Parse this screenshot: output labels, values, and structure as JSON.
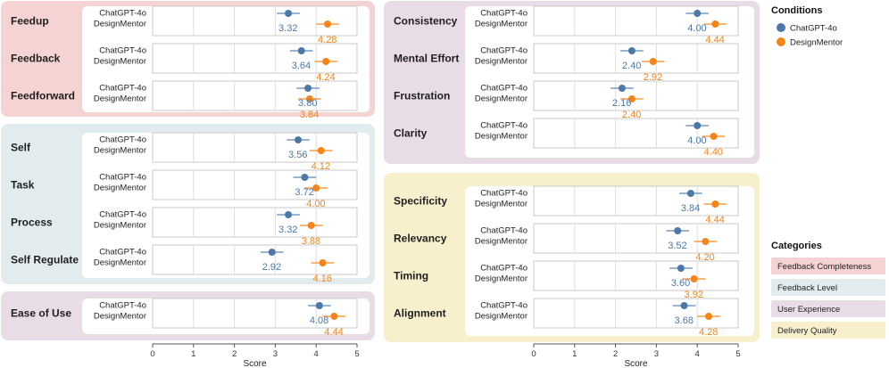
{
  "legend": {
    "conditions_title": "Conditions",
    "categories_title": "Categories"
  },
  "chart_data": {
    "type": "dot-whisker",
    "xlabel": "Score",
    "xlim": [
      0,
      5
    ],
    "ticks": [
      0,
      1,
      2,
      3,
      4,
      5
    ],
    "conditions": [
      {
        "name": "ChatGPT-4o",
        "color": "#4C78A8"
      },
      {
        "name": "DesignMentor",
        "color": "#F58518"
      }
    ],
    "categories": [
      {
        "name": "Feedback Completeness",
        "color": "#F5D3D2"
      },
      {
        "name": "Feedback Level",
        "color": "#E2ECEE"
      },
      {
        "name": "User Experience",
        "color": "#E8DCE6"
      },
      {
        "name": "Delivery Quality",
        "color": "#F8EFCD"
      }
    ],
    "groups": [
      {
        "category": "Feedback Completeness",
        "metrics": [
          {
            "name": "Feedup",
            "values": [
              3.32,
              4.28
            ]
          },
          {
            "name": "Feedback",
            "values": [
              3.64,
              4.24
            ]
          },
          {
            "name": "Feedforward",
            "values": [
              3.8,
              3.84
            ]
          }
        ]
      },
      {
        "category": "Feedback Level",
        "metrics": [
          {
            "name": "Self",
            "values": [
              3.56,
              4.12
            ]
          },
          {
            "name": "Task",
            "values": [
              3.72,
              4.0
            ]
          },
          {
            "name": "Process",
            "values": [
              3.32,
              3.88
            ]
          },
          {
            "name": "Self Regulate",
            "values": [
              2.92,
              4.16
            ]
          }
        ]
      },
      {
        "category": "User Experience",
        "metrics": [
          {
            "name": "Ease of Use",
            "values": [
              4.08,
              4.44
            ]
          }
        ]
      },
      {
        "category": "User Experience",
        "metrics": [
          {
            "name": "Consistency",
            "values": [
              4.0,
              4.44
            ]
          },
          {
            "name": "Mental Effort",
            "values": [
              2.4,
              2.92
            ]
          },
          {
            "name": "Frustration",
            "values": [
              2.16,
              2.4
            ]
          },
          {
            "name": "Clarity",
            "values": [
              4.0,
              4.4
            ]
          }
        ]
      },
      {
        "category": "Delivery Quality",
        "metrics": [
          {
            "name": "Specificity",
            "values": [
              3.84,
              4.44
            ]
          },
          {
            "name": "Relevancy",
            "values": [
              3.52,
              4.2
            ]
          },
          {
            "name": "Timing",
            "values": [
              3.6,
              3.92
            ]
          },
          {
            "name": "Alignment",
            "values": [
              3.68,
              4.28
            ]
          }
        ]
      }
    ]
  }
}
